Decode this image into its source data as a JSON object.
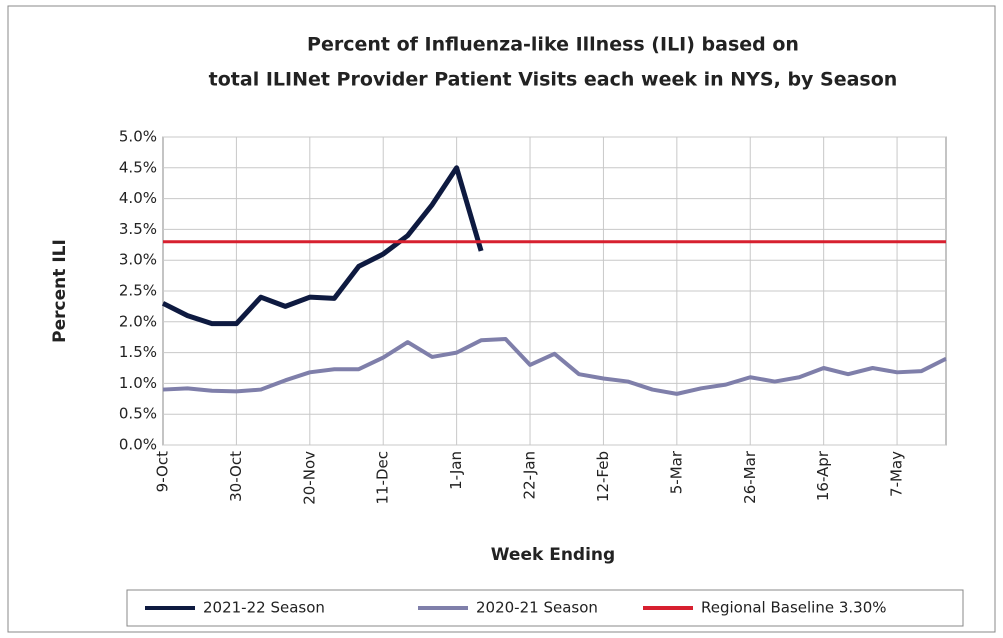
{
  "chart_data": {
    "type": "line",
    "title": [
      "Percent of Influenza-like Illness (ILI) based on",
      "total ILINet Provider Patient Visits each week in NYS, by Season"
    ],
    "xlabel": "Week Ending",
    "ylabel": "Percent ILI",
    "categories": [
      "9-Oct",
      null,
      null,
      "30-Oct",
      null,
      null,
      "20-Nov",
      null,
      null,
      "11-Dec",
      null,
      null,
      "1-Jan",
      null,
      null,
      "22-Jan",
      null,
      null,
      "12-Feb",
      null,
      null,
      "5-Mar",
      null,
      null,
      "26-Mar",
      null,
      null,
      "16-Apr",
      null,
      null,
      "7-May",
      null,
      null
    ],
    "series": [
      {
        "name": "2021-22 Season",
        "color": "#0e1a40",
        "values": [
          2.3,
          2.1,
          1.97,
          1.97,
          2.4,
          2.25,
          2.4,
          2.38,
          2.9,
          3.1,
          3.4,
          3.9,
          4.5,
          3.15,
          null,
          null,
          null,
          null,
          null,
          null,
          null,
          null,
          null,
          null,
          null,
          null,
          null,
          null,
          null,
          null,
          null,
          null,
          null
        ]
      },
      {
        "name": "2020-21 Season",
        "color": "#7f7faa",
        "values": [
          0.9,
          0.92,
          0.88,
          0.87,
          0.9,
          1.05,
          1.18,
          1.23,
          1.23,
          1.42,
          1.67,
          1.43,
          1.5,
          1.7,
          1.72,
          1.3,
          1.48,
          1.15,
          1.08,
          1.03,
          0.9,
          0.83,
          0.92,
          0.98,
          1.1,
          1.03,
          1.1,
          1.25,
          1.15,
          1.25,
          1.18,
          1.2,
          1.4
        ]
      }
    ],
    "baseline": {
      "name": "Regional Baseline 3.30%",
      "value": 3.3,
      "color": "#d7202f"
    },
    "ylim": [
      0,
      5
    ],
    "yticks": [
      {
        "value": 0,
        "label": "0.0%"
      },
      {
        "value": 0.5,
        "label": "0.5%"
      },
      {
        "value": 1,
        "label": "1.0%"
      },
      {
        "value": 1.5,
        "label": "1.5%"
      },
      {
        "value": 2,
        "label": "2.0%"
      },
      {
        "value": 2.5,
        "label": "2.5%"
      },
      {
        "value": 3,
        "label": "3.0%"
      },
      {
        "value": 3.5,
        "label": "3.5%"
      },
      {
        "value": 4,
        "label": "4.0%"
      },
      {
        "value": 4.5,
        "label": "4.5%"
      },
      {
        "value": 5,
        "label": "5.0%"
      }
    ],
    "grid": true,
    "legend": "bottom"
  }
}
